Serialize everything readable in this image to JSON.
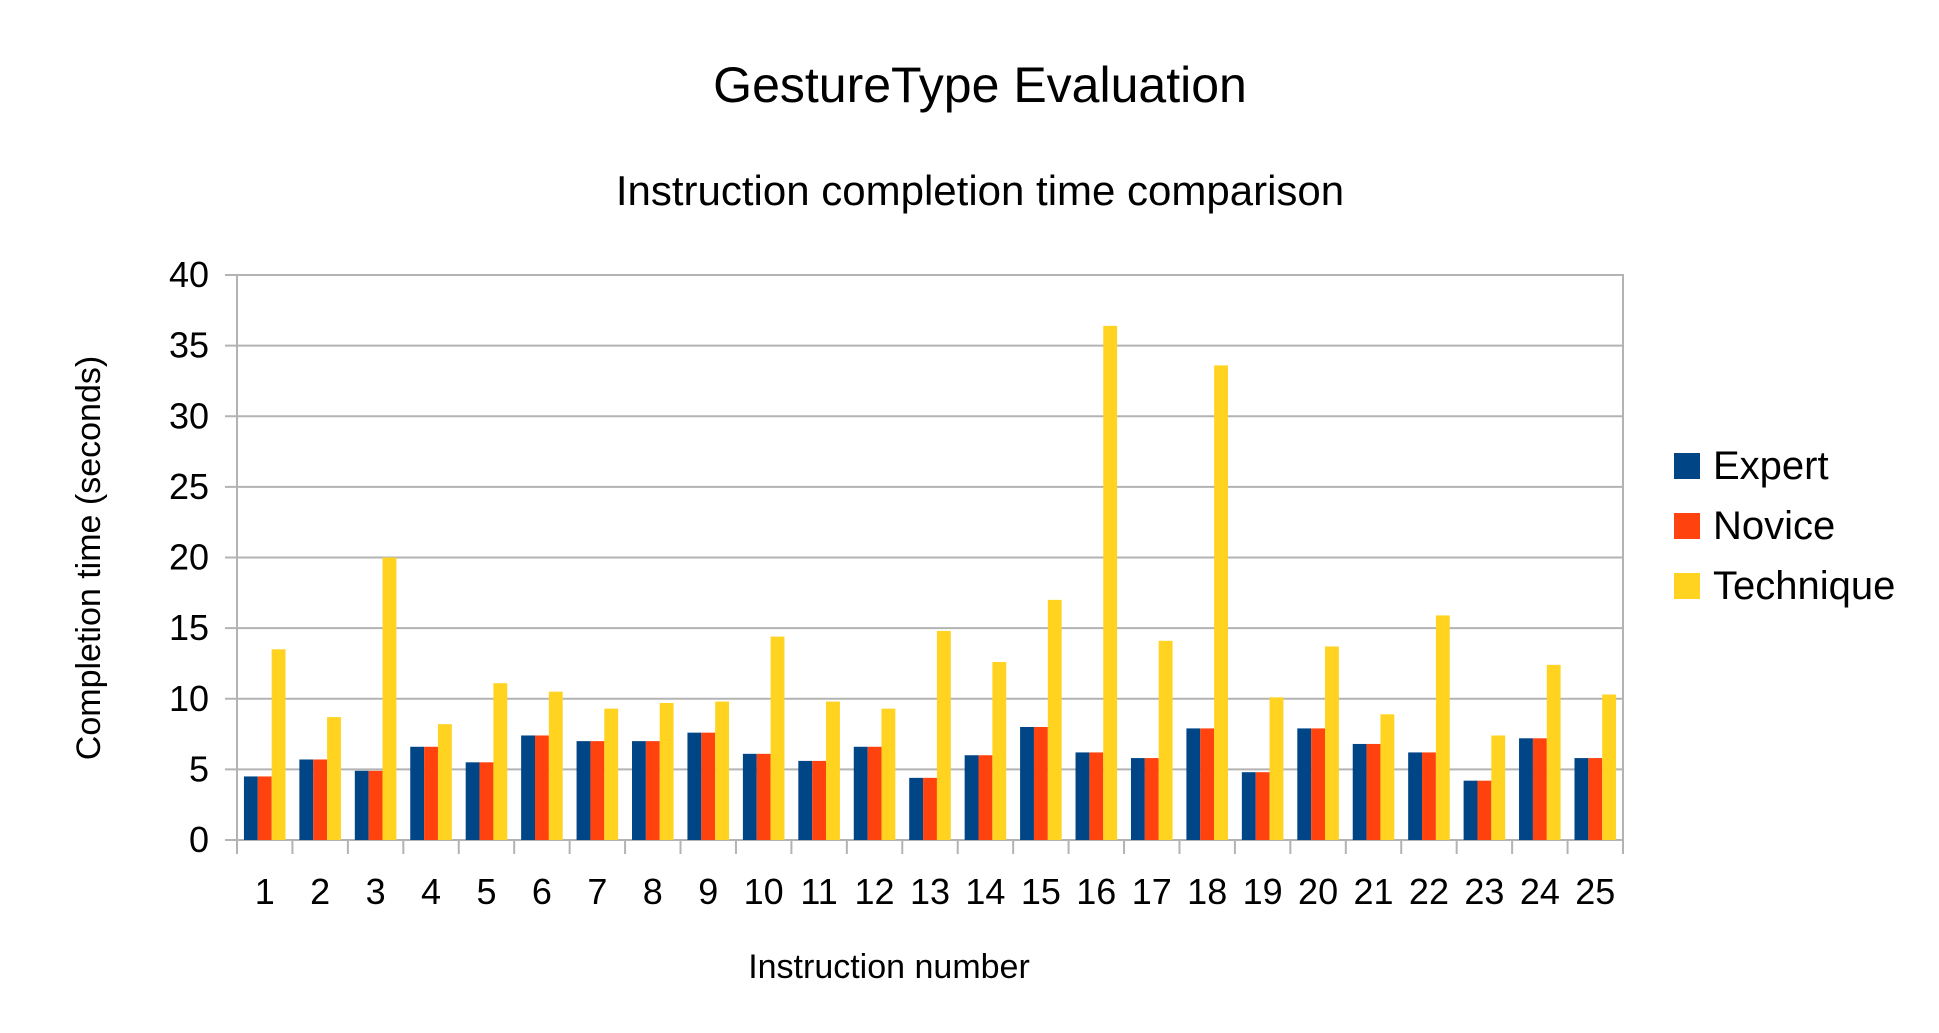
{
  "chart_data": {
    "type": "bar",
    "title": "GestureType Evaluation",
    "subtitle": "Instruction completion time comparison",
    "xlabel": "Instruction number",
    "ylabel": "Completion time (seconds)",
    "ylim": [
      0,
      40
    ],
    "yticks": [
      0,
      5,
      10,
      15,
      20,
      25,
      30,
      35,
      40
    ],
    "grid": true,
    "legend_position": "right",
    "categories": [
      "1",
      "2",
      "3",
      "4",
      "5",
      "6",
      "7",
      "8",
      "9",
      "10",
      "11",
      "12",
      "13",
      "14",
      "15",
      "16",
      "17",
      "18",
      "19",
      "20",
      "21",
      "22",
      "23",
      "24",
      "25"
    ],
    "series": [
      {
        "name": "Expert",
        "color": "#004586",
        "values": [
          4.5,
          5.7,
          4.9,
          6.6,
          5.5,
          7.4,
          7.0,
          7.0,
          7.6,
          6.1,
          5.6,
          6.6,
          4.4,
          6.0,
          8.0,
          6.2,
          5.8,
          7.9,
          4.8,
          7.9,
          6.8,
          6.2,
          4.2,
          7.2,
          5.8
        ]
      },
      {
        "name": "Novice",
        "color": "#ff420e",
        "values": [
          4.5,
          5.7,
          4.9,
          6.6,
          5.5,
          7.4,
          7.0,
          7.0,
          7.6,
          6.1,
          5.6,
          6.6,
          4.4,
          6.0,
          8.0,
          6.2,
          5.8,
          7.9,
          4.8,
          7.9,
          6.8,
          6.2,
          4.2,
          7.2,
          5.8
        ]
      },
      {
        "name": "Technique",
        "color": "#ffd320",
        "values": [
          13.5,
          8.7,
          20.0,
          8.2,
          11.1,
          10.5,
          9.3,
          9.7,
          9.8,
          14.4,
          9.8,
          9.3,
          14.8,
          12.6,
          17.0,
          36.4,
          14.1,
          33.6,
          10.1,
          13.7,
          8.9,
          15.9,
          7.4,
          12.4,
          10.3
        ]
      }
    ]
  }
}
